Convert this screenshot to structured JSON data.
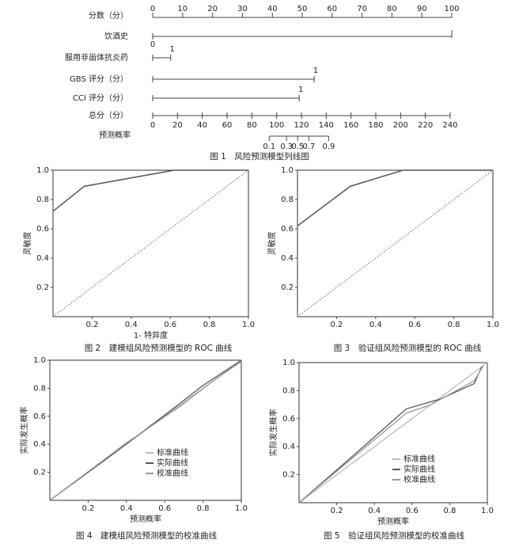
{
  "nomogram": {
    "points_axis": {
      "label": "分数（分）",
      "lim": [
        0,
        100
      ],
      "ticks": [
        0,
        10,
        20,
        30,
        40,
        50,
        60,
        70,
        80,
        90,
        100
      ]
    },
    "variables": [
      {
        "label": "饮酒史",
        "levels": [
          {
            "label": "0",
            "points": 0
          }
        ],
        "line_end": 100
      },
      {
        "label": "服用非甾体抗炎药",
        "levels": [
          {
            "label": "1",
            "points": 6
          }
        ]
      },
      {
        "label": "GBS 评分（分）",
        "levels": [
          {
            "label": "1",
            "points": 54
          }
        ]
      },
      {
        "label": "CCI 评分（分）",
        "levels": [
          {
            "label": "1",
            "points": 49
          }
        ]
      }
    ],
    "total_axis": {
      "label": "总分（分）",
      "lim": [
        0,
        240
      ],
      "ticks": [
        0,
        20,
        40,
        60,
        80,
        100,
        120,
        140,
        160,
        180,
        200,
        220,
        240
      ]
    },
    "probability": {
      "label": "预测概率",
      "ticks": [
        0.1,
        0.3,
        0.5,
        0.7,
        0.9
      ],
      "total_points": [
        94,
        108,
        117,
        126,
        142
      ]
    },
    "caption": "图 1　风险预测模型列线图"
  },
  "chart_data": [
    {
      "type": "roc",
      "title": "图 2　建模组风险预测模型的 ROC 曲线",
      "xlabel": "1- 特异度",
      "ylabel": "灵敏度",
      "x": [
        0,
        0.16,
        0.62,
        1
      ],
      "values": [
        0.72,
        0.89,
        1,
        1
      ],
      "color": "#555555",
      "diagonal": true,
      "xlim": [
        0,
        1
      ],
      "ylim": [
        0,
        1
      ],
      "xticks": [
        0.2,
        0.4,
        0.6,
        0.8,
        {
          "value": 1,
          "label": "1.0"
        }
      ],
      "yticks": [
        0.2,
        0.4,
        0.6,
        0.8,
        {
          "value": 1,
          "label": "1.0"
        }
      ]
    },
    {
      "type": "roc",
      "title": "图 3　验证组风险预测模型的 ROC 曲线",
      "ylabel": "灵敏度",
      "x": [
        0,
        0.27,
        0.54,
        1
      ],
      "values": [
        0.62,
        0.89,
        1,
        1
      ],
      "color": "#555555",
      "diagonal": true,
      "xlim": [
        0,
        1
      ],
      "ylim": [
        0,
        1
      ],
      "xticks": [
        0.2,
        0.4,
        0.6,
        0.8,
        {
          "value": 1,
          "label": "1.0"
        }
      ],
      "yticks": [
        0.2,
        0.4,
        0.6,
        0.8,
        {
          "value": 1,
          "label": "1.0"
        }
      ]
    },
    {
      "type": "calibration",
      "title": "图 4　建模组风险预测模型的校准曲线",
      "xlabel": "预测概率",
      "ylabel": "实际发生概率",
      "series": [
        {
          "name": "标准曲线",
          "color": "#bbbbbb",
          "x": [
            0,
            1
          ],
          "values": [
            0,
            1
          ]
        },
        {
          "name": "实际曲线",
          "color": "#555555",
          "x": [
            0,
            0.3,
            0.65,
            0.8,
            1
          ],
          "values": [
            0,
            0.3,
            0.66,
            0.82,
            1
          ]
        },
        {
          "name": "校准曲线",
          "color": "#999999",
          "x": [
            0,
            0.4,
            0.68,
            0.85,
            1
          ],
          "values": [
            0,
            0.41,
            0.67,
            0.85,
            0.99
          ]
        }
      ],
      "xlim": [
        0,
        1
      ],
      "ylim": [
        0,
        1
      ],
      "xticks": [
        0.2,
        0.4,
        0.6,
        0.8,
        {
          "value": 1,
          "label": "1.0"
        }
      ],
      "yticks": [
        0.2,
        0.4,
        0.6,
        0.8,
        {
          "value": 1,
          "label": "1.0"
        }
      ]
    },
    {
      "type": "calibration",
      "title": "图 5　验证组风险预测模型的校准曲线",
      "xlabel": "预测概率",
      "ylabel": "实际发生概率",
      "series": [
        {
          "name": "标准曲线",
          "color": "#bbbbbb",
          "x": [
            0,
            1
          ],
          "values": [
            0,
            1
          ]
        },
        {
          "name": "实际曲线",
          "color": "#555555",
          "x": [
            0,
            0.3,
            0.57,
            0.75,
            0.93,
            0.97
          ],
          "values": [
            0,
            0.35,
            0.67,
            0.74,
            0.85,
            0.97
          ]
        },
        {
          "name": "校准曲线",
          "color": "#999999",
          "x": [
            0,
            0.57,
            0.7,
            0.93,
            0.98
          ],
          "values": [
            0,
            0.64,
            0.7,
            0.87,
            0.98
          ]
        }
      ],
      "xlim": [
        0,
        1
      ],
      "ylim": [
        0,
        1
      ],
      "xticks": [
        0.2,
        0.4,
        0.6,
        0.8,
        {
          "value": 1,
          "label": "1.0"
        }
      ],
      "yticks": [
        0.2,
        0.4,
        0.6,
        0.8,
        {
          "value": 1,
          "label": "1.0"
        }
      ]
    }
  ]
}
